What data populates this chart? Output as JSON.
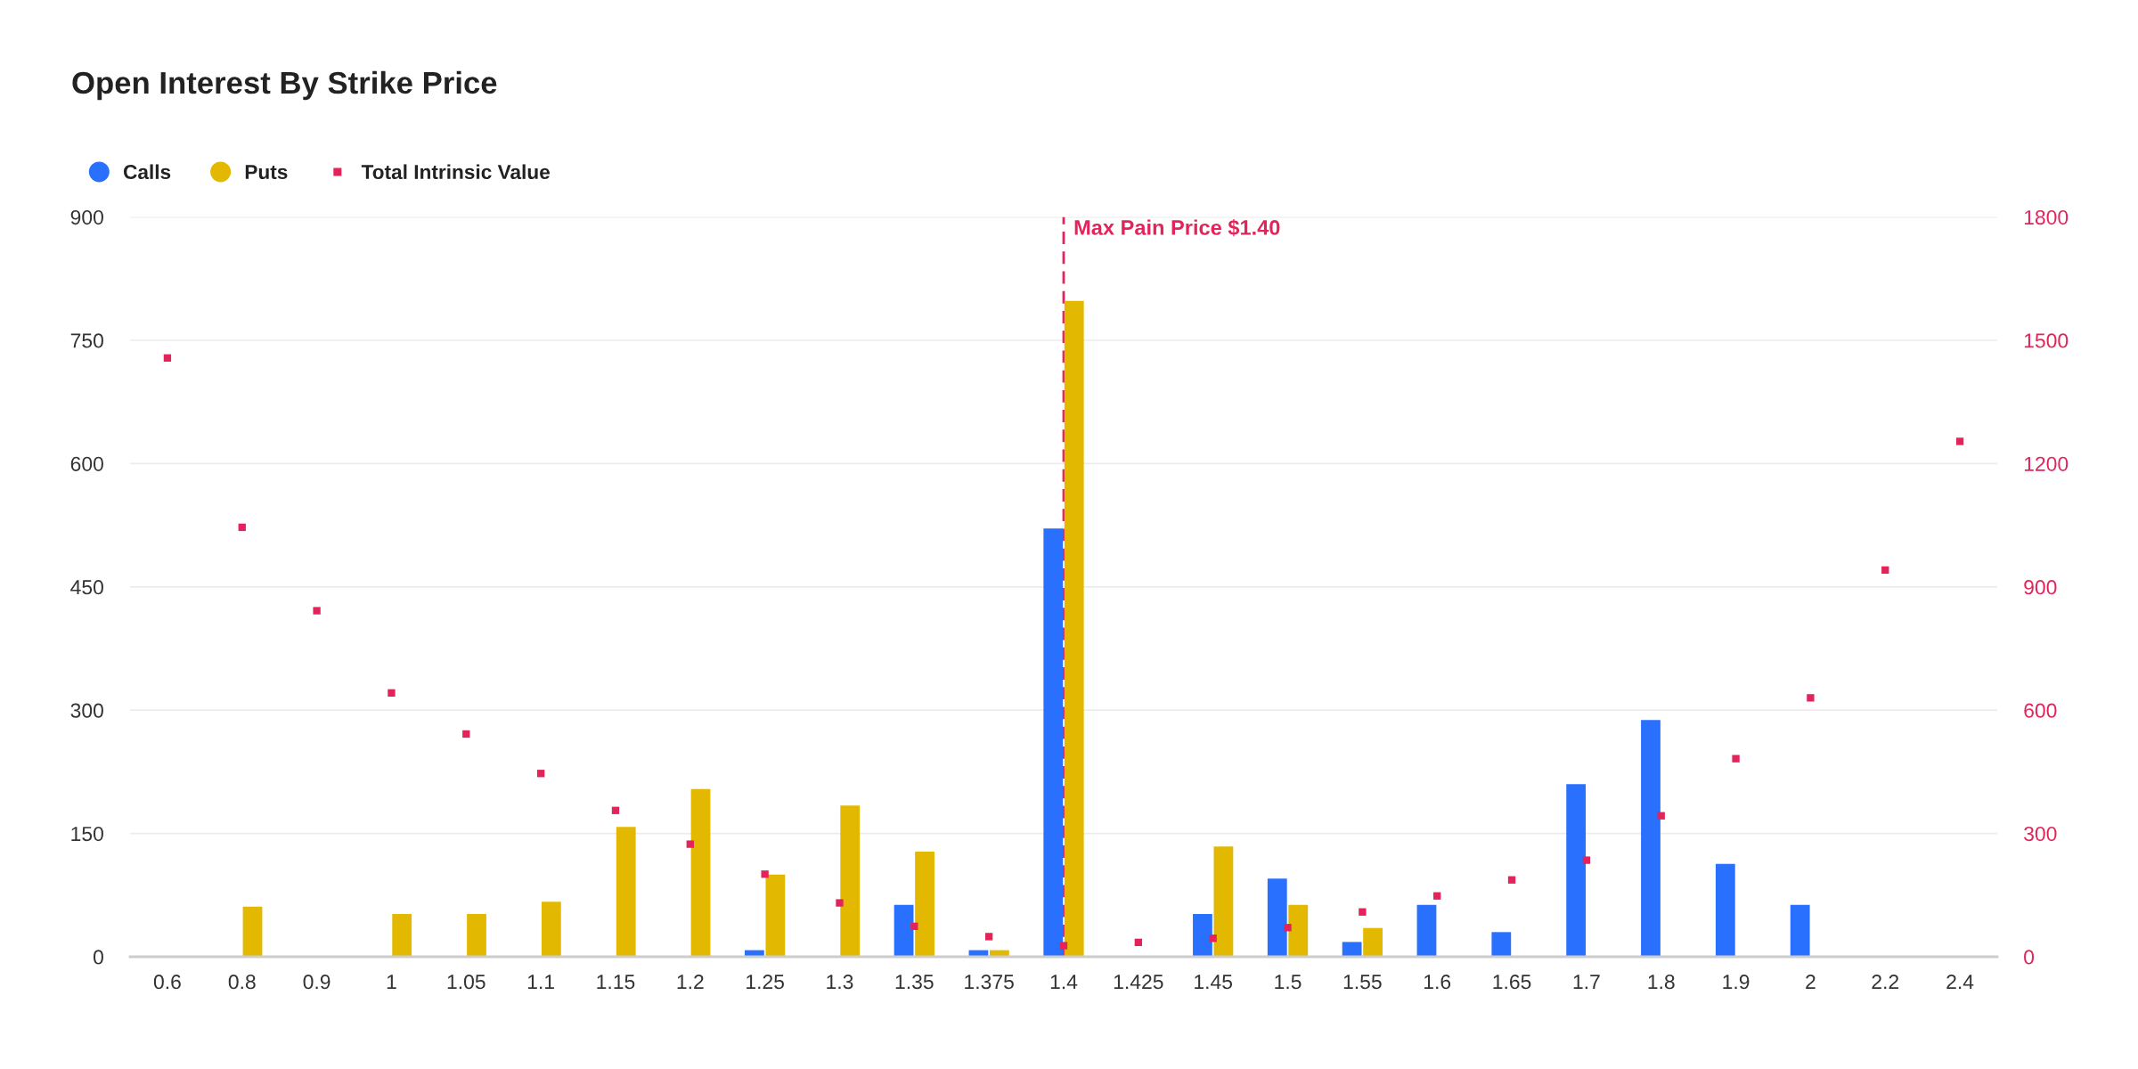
{
  "chart_data": {
    "type": "bar",
    "title": "Open Interest By Strike Price",
    "categories": [
      "0.6",
      "0.8",
      "0.9",
      "1",
      "1.05",
      "1.1",
      "1.15",
      "1.2",
      "1.25",
      "1.3",
      "1.35",
      "1.375",
      "1.4",
      "1.425",
      "1.45",
      "1.5",
      "1.55",
      "1.6",
      "1.65",
      "1.7",
      "1.8",
      "1.9",
      "2",
      "2.2",
      "2.4"
    ],
    "series": [
      {
        "name": "Calls",
        "color": "#2970ff",
        "values": [
          null,
          null,
          null,
          null,
          null,
          null,
          null,
          null,
          8,
          null,
          63,
          8,
          521,
          null,
          52,
          95,
          18,
          63,
          30,
          210,
          288,
          113,
          63,
          null,
          null
        ]
      },
      {
        "name": "Puts",
        "color": "#e3b800",
        "values": [
          null,
          61,
          null,
          52,
          52,
          67,
          158,
          204,
          100,
          184,
          128,
          8,
          798,
          null,
          134,
          63,
          35,
          null,
          null,
          null,
          null,
          null,
          null,
          null,
          null
        ]
      },
      {
        "name": "Total Intrinsic Value",
        "type": "scatter",
        "axis": "y2",
        "marker": "square",
        "color": "#e2245b",
        "values": [
          1457,
          1045,
          842,
          642,
          542,
          446,
          356,
          274,
          201,
          131,
          74,
          49,
          27,
          35,
          45,
          71,
          109,
          148,
          187,
          235,
          343,
          482,
          630,
          941,
          1254
        ]
      }
    ],
    "ylim": [
      0,
      900
    ],
    "yticks": [
      0,
      150,
      300,
      450,
      600,
      750,
      900
    ],
    "y2lim": [
      0,
      1800
    ],
    "y2ticks": [
      0,
      300,
      600,
      900,
      1200,
      1500,
      1800
    ],
    "grid": "y",
    "legend": "top left",
    "ref_lines": [
      {
        "axis": "x",
        "value": "1.4",
        "label": "Max Pain Price $1.40",
        "color": "#e2245b",
        "line_style": "dashed"
      }
    ]
  }
}
